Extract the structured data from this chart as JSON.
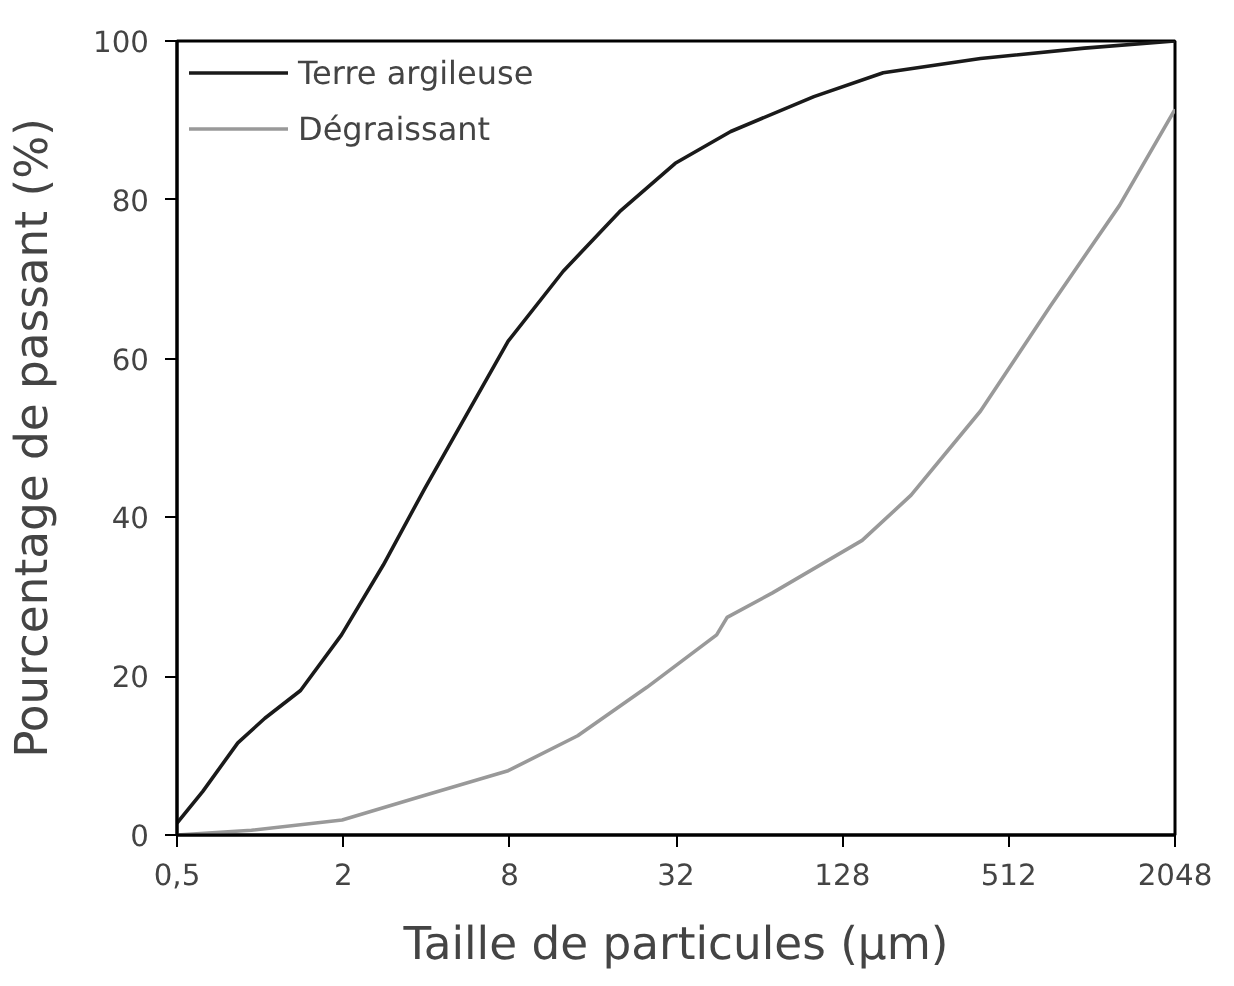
{
  "chart_data": {
    "type": "line",
    "xlabel": "Taille de particules (µm)",
    "ylabel": "Pourcentage de passant (%)",
    "log": "x",
    "xlim": [
      0.5,
      2048
    ],
    "ylim": [
      0,
      100
    ],
    "xticks": [
      {
        "value": 0.5,
        "label": "0,5"
      },
      2,
      8,
      32,
      128,
      512,
      2048
    ],
    "yticks": [
      0,
      20,
      40,
      60,
      80,
      100
    ],
    "grid": false,
    "legend": "top left",
    "line_style": "solid",
    "marker": "none",
    "series": [
      {
        "name": "Terre argileuse",
        "color": "#1a1a1a",
        "x": [
          0.5,
          0.62,
          0.83,
          1.04,
          1.4,
          1.97,
          2.79,
          3.95,
          5.58,
          7.9,
          12.5,
          20,
          31.8,
          50.5,
          101,
          180,
          405,
          963,
          2048
        ],
        "values": [
          1.5,
          5.5,
          11.6,
          14.7,
          18.2,
          25.2,
          34,
          43.7,
          52.9,
          62.2,
          71,
          78.5,
          84.6,
          88.6,
          93,
          96,
          97.8,
          99.1,
          100
        ]
      },
      {
        "name": "Dégraissant",
        "color": "#999999",
        "x": [
          0.5,
          0.93,
          1.98,
          3.95,
          7.9,
          14.1,
          25.1,
          44.9,
          49,
          71.5,
          151,
          227,
          405,
          724,
          1290,
          2048
        ],
        "values": [
          0,
          0.6,
          1.9,
          5,
          8.1,
          12.5,
          18.6,
          25.2,
          27.4,
          30.5,
          37.1,
          42.8,
          53.4,
          66.6,
          79.3,
          91.4
        ]
      }
    ]
  }
}
